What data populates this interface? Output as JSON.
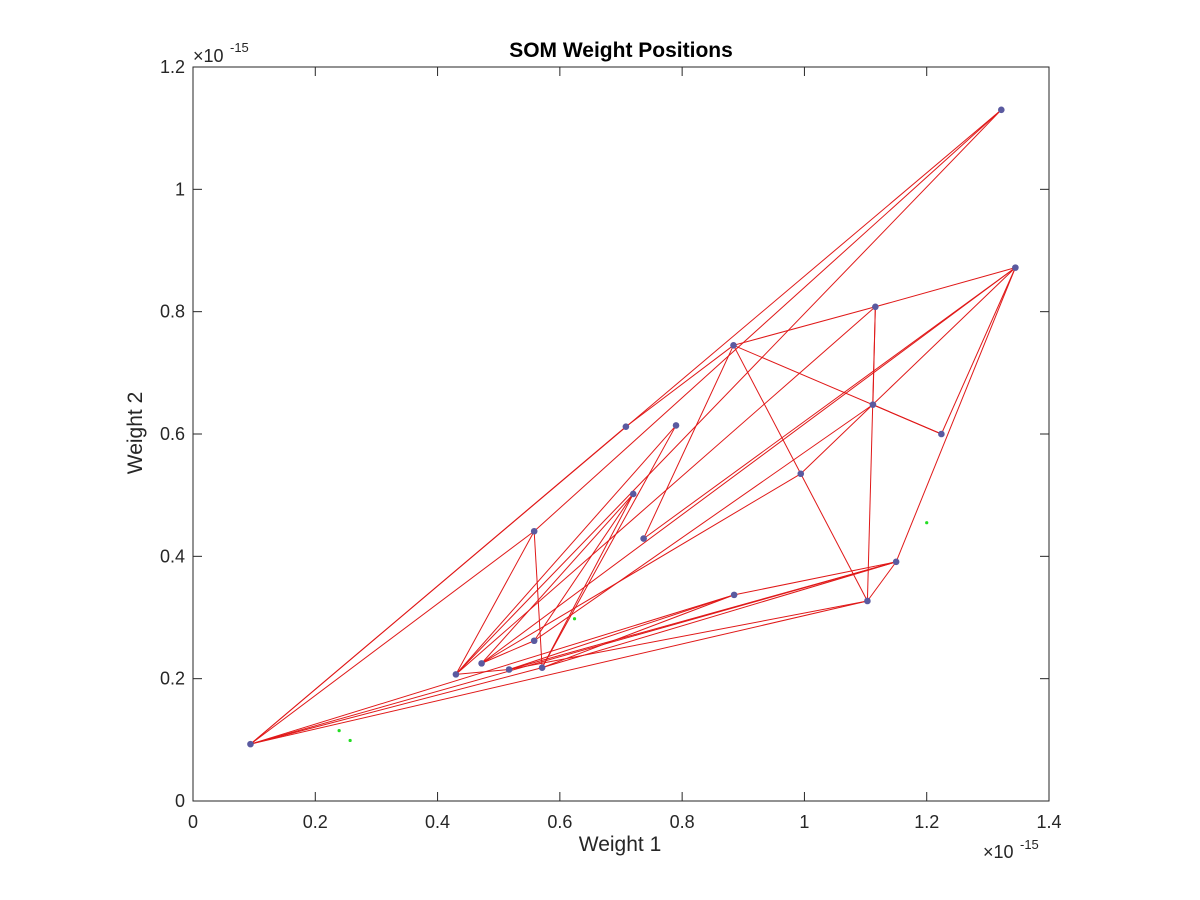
{
  "chart_data": {
    "type": "scatter",
    "title": "SOM Weight Positions",
    "xlabel": "Weight 1",
    "ylabel": "Weight 2",
    "xlim": [
      0,
      1.4
    ],
    "ylim": [
      0,
      1.2
    ],
    "x_exponent": "×10",
    "x_exponent_power": "-15",
    "y_exponent": "×10",
    "y_exponent_power": "-15",
    "xticks": [
      0,
      0.2,
      0.4,
      0.6,
      0.8,
      1.0,
      1.2,
      1.4
    ],
    "xtick_labels": [
      "0",
      "0.2",
      "0.4",
      "0.6",
      "0.8",
      "1",
      "1.2",
      "1.4"
    ],
    "yticks": [
      0,
      0.2,
      0.4,
      0.6,
      0.8,
      1.0,
      1.2
    ],
    "ytick_labels": [
      "0",
      "0.2",
      "0.4",
      "0.6",
      "0.8",
      "1",
      "1.2"
    ],
    "grid": false,
    "colors": {
      "neurons": "#5a5aa0",
      "connections": "#e01818",
      "inputs": "#22dd22",
      "axes": "#262626"
    },
    "input_points": {
      "x": [
        0.239,
        0.257,
        0.624,
        1.2
      ],
      "y": [
        0.115,
        0.099,
        0.298,
        0.455
      ]
    },
    "neurons": {
      "x": [
        0.094,
        0.43,
        0.472,
        0.517,
        0.558,
        0.571,
        0.558,
        0.708,
        0.72,
        0.737,
        0.79,
        0.884,
        0.885,
        0.994,
        1.103,
        1.112,
        1.116,
        1.15,
        1.224,
        1.322,
        1.345
      ],
      "y": [
        0.093,
        0.207,
        0.225,
        0.215,
        0.262,
        0.218,
        0.441,
        0.612,
        0.502,
        0.429,
        0.614,
        0.745,
        0.337,
        0.535,
        0.327,
        0.648,
        0.808,
        0.391,
        0.6,
        1.13,
        0.872
      ]
    },
    "connections": [
      [
        0,
        7
      ],
      [
        0,
        19
      ],
      [
        0,
        6
      ],
      [
        0,
        17
      ],
      [
        0,
        14
      ],
      [
        0,
        12
      ],
      [
        0,
        5
      ],
      [
        1,
        6
      ],
      [
        1,
        19
      ],
      [
        1,
        10
      ],
      [
        1,
        16
      ],
      [
        1,
        3
      ],
      [
        2,
        8
      ],
      [
        2,
        20
      ],
      [
        2,
        4
      ],
      [
        2,
        13
      ],
      [
        3,
        17
      ],
      [
        3,
        14
      ],
      [
        3,
        12
      ],
      [
        4,
        8
      ],
      [
        4,
        15
      ],
      [
        5,
        6
      ],
      [
        5,
        8
      ],
      [
        5,
        10
      ],
      [
        5,
        12
      ],
      [
        5,
        17
      ],
      [
        6,
        19
      ],
      [
        7,
        11
      ],
      [
        9,
        11
      ],
      [
        9,
        20
      ],
      [
        11,
        16
      ],
      [
        11,
        18
      ],
      [
        11,
        13
      ],
      [
        13,
        14
      ],
      [
        13,
        20
      ],
      [
        14,
        16
      ],
      [
        14,
        17
      ],
      [
        15,
        18
      ],
      [
        15,
        16
      ],
      [
        16,
        20
      ],
      [
        17,
        20
      ],
      [
        18,
        20
      ],
      [
        12,
        17
      ]
    ]
  }
}
